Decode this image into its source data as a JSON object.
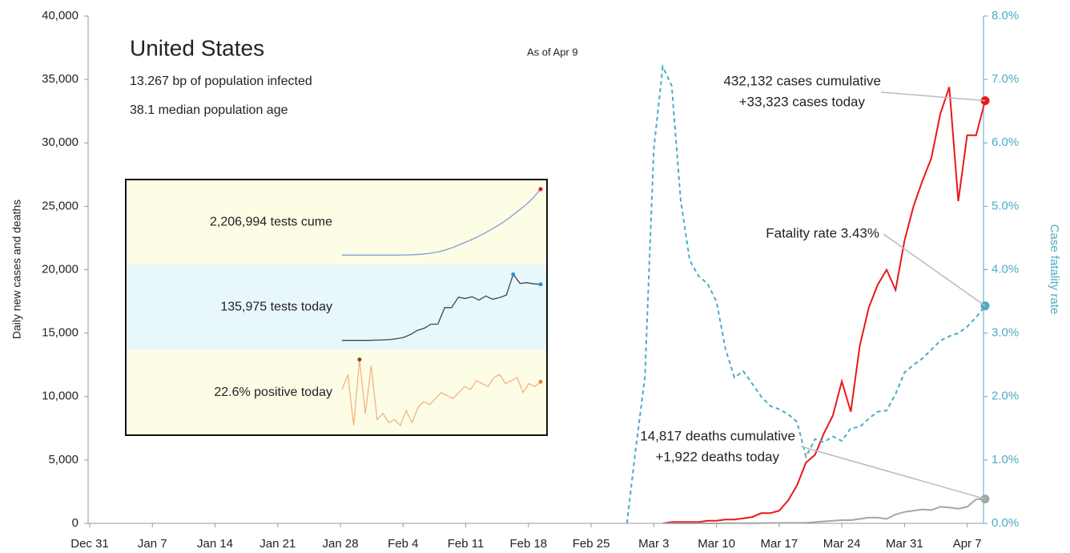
{
  "chart_data": {
    "type": "line",
    "title": "United States",
    "subtitle": [
      "13.267 bp of population infected",
      "38.1 median population age"
    ],
    "date_note": "As of Apr 9",
    "ylabel": "Daily new cases and deaths",
    "y2label": "Case fatality rate",
    "ylim": [
      0,
      40000
    ],
    "yticks": [
      0,
      {
        "value": 5000,
        "label": "5,000"
      },
      {
        "value": 10000,
        "label": "10,000"
      },
      {
        "value": 15000,
        "label": "15,000"
      },
      {
        "value": 20000,
        "label": "20,000"
      },
      {
        "value": 25000,
        "label": "25,000"
      },
      {
        "value": 30000,
        "label": "30,000"
      },
      {
        "value": 35000,
        "label": "35,000"
      },
      {
        "value": 40000,
        "label": "40,000"
      }
    ],
    "y2lim": [
      0,
      8
    ],
    "y2ticks": [
      {
        "value": 0,
        "label": "0.0%"
      },
      {
        "value": 1,
        "label": "1.0%"
      },
      {
        "value": 2,
        "label": "2.0%"
      },
      {
        "value": 3,
        "label": "3.0%"
      },
      {
        "value": 4,
        "label": "4.0%"
      },
      {
        "value": 5,
        "label": "5.0%"
      },
      {
        "value": 6,
        "label": "6.0%"
      },
      {
        "value": 7,
        "label": "7.0%"
      },
      {
        "value": 8,
        "label": "8.0%"
      }
    ],
    "y2color": "#4bacc6",
    "categories": [
      "Dec 31",
      null,
      null,
      null,
      null,
      null,
      null,
      "Jan 7",
      null,
      null,
      null,
      null,
      null,
      null,
      "Jan 14",
      null,
      null,
      null,
      null,
      null,
      null,
      "Jan 21",
      null,
      null,
      null,
      null,
      null,
      null,
      "Jan 28",
      null,
      null,
      null,
      null,
      null,
      null,
      "Feb 4",
      null,
      null,
      null,
      null,
      null,
      null,
      "Feb 11",
      null,
      null,
      null,
      null,
      null,
      null,
      "Feb 18",
      null,
      null,
      null,
      null,
      null,
      null,
      "Feb 25",
      null,
      null,
      null,
      null,
      null,
      null,
      "Mar 3",
      null,
      null,
      null,
      null,
      null,
      null,
      "Mar 10",
      null,
      null,
      null,
      null,
      null,
      null,
      "Mar 17",
      null,
      null,
      null,
      null,
      null,
      null,
      "Mar 24",
      null,
      null,
      null,
      null,
      null,
      null,
      "Mar 31",
      null,
      null,
      null,
      null,
      null,
      null,
      "Apr 7",
      null,
      null
    ],
    "series": [
      {
        "color": "#e8191c",
        "dashed": false,
        "axis": "y",
        "end_marker": true,
        "values": [
          null,
          null,
          null,
          null,
          null,
          null,
          null,
          null,
          null,
          null,
          null,
          null,
          null,
          null,
          null,
          null,
          null,
          null,
          null,
          null,
          null,
          null,
          null,
          null,
          null,
          null,
          null,
          null,
          null,
          null,
          null,
          null,
          null,
          null,
          null,
          null,
          null,
          null,
          null,
          null,
          null,
          null,
          null,
          null,
          null,
          null,
          null,
          null,
          null,
          null,
          null,
          null,
          null,
          null,
          null,
          null,
          null,
          null,
          null,
          null,
          null,
          null,
          null,
          null,
          0,
          100,
          100,
          100,
          100,
          200,
          200,
          300,
          300,
          400,
          500,
          800,
          800,
          1000,
          1800,
          3000,
          4800,
          5400,
          7100,
          8500,
          11200,
          8800,
          14000,
          17000,
          18800,
          20000,
          18400,
          22300,
          25000,
          27000,
          28800,
          32300,
          34400,
          25400,
          30600,
          30600,
          33323
        ]
      },
      {
        "color": "#a6a6a6",
        "dashed": false,
        "axis": "y",
        "end_marker": true,
        "values": [
          null,
          null,
          null,
          null,
          null,
          null,
          null,
          null,
          null,
          null,
          null,
          null,
          null,
          null,
          null,
          null,
          null,
          null,
          null,
          null,
          null,
          null,
          null,
          null,
          null,
          null,
          null,
          null,
          null,
          null,
          null,
          null,
          null,
          null,
          null,
          null,
          null,
          null,
          null,
          null,
          null,
          null,
          null,
          null,
          null,
          null,
          null,
          null,
          null,
          null,
          null,
          null,
          null,
          null,
          null,
          null,
          null,
          null,
          null,
          null,
          null,
          null,
          null,
          null,
          0,
          0,
          0,
          0,
          0,
          0,
          0,
          10,
          10,
          10,
          20,
          20,
          30,
          30,
          40,
          40,
          50,
          100,
          150,
          200,
          250,
          250,
          350,
          450,
          450,
          350,
          700,
          900,
          1000,
          1100,
          1050,
          1300,
          1250,
          1150,
          1300,
          1900,
          1922
        ]
      },
      {
        "color": "#4bacc6",
        "dashed": true,
        "axis": "y2",
        "end_marker": true,
        "values": [
          null,
          null,
          null,
          null,
          null,
          null,
          null,
          null,
          null,
          null,
          null,
          null,
          null,
          null,
          null,
          null,
          null,
          null,
          null,
          null,
          null,
          null,
          null,
          null,
          null,
          null,
          null,
          null,
          null,
          null,
          null,
          null,
          null,
          null,
          null,
          null,
          null,
          null,
          null,
          null,
          null,
          null,
          null,
          null,
          null,
          null,
          null,
          null,
          null,
          null,
          null,
          null,
          null,
          null,
          null,
          null,
          null,
          null,
          null,
          null,
          0,
          1.2,
          2.3,
          5.9,
          7.2,
          6.9,
          5.1,
          4.15,
          3.9,
          3.78,
          3.5,
          2.75,
          2.3,
          2.4,
          2.2,
          2.0,
          1.85,
          1.8,
          1.72,
          1.6,
          1.05,
          1.33,
          1.28,
          1.37,
          1.3,
          1.5,
          1.52,
          1.65,
          1.76,
          1.78,
          2.04,
          2.38,
          2.5,
          2.6,
          2.74,
          2.88,
          2.95,
          3.0,
          3.1,
          3.25,
          3.43
        ]
      }
    ],
    "callouts": [
      {
        "lines": [
          "432,132 cases cumulative",
          "+33,323 cases today"
        ],
        "series": 0
      },
      {
        "lines": [
          "Fatality rate 3.43%"
        ],
        "series": 2
      },
      {
        "lines": [
          "14,817 deaths cumulative",
          "+1,922 deaths today"
        ],
        "series": 1
      }
    ],
    "inset": [
      {
        "label": "2,206,994 tests cume",
        "background": "#fdfde6",
        "color": "#7f9fcf",
        "max_color": "#e8191c",
        "end_color": "#e8191c",
        "values": [
          0,
          0,
          0,
          0,
          0,
          0,
          0,
          0,
          5000,
          15000,
          30000,
          60000,
          100000,
          170000,
          260000,
          370000,
          480000,
          600000,
          740000,
          890000,
          1050000,
          1230000,
          1440000,
          1650000,
          1900000,
          2206994
        ]
      },
      {
        "label": "135,975 tests today",
        "background": "#e8f7fc",
        "color": "#3a4656",
        "max_color": "#2a8fd0",
        "end_color": "#2a8fd0",
        "values": [
          1000,
          1000,
          1000,
          1000,
          1000,
          1500,
          2000,
          3000,
          5000,
          8000,
          15000,
          25000,
          30000,
          40000,
          40000,
          80000,
          80000,
          105000,
          102000,
          106000,
          98000,
          108000,
          100000,
          104000,
          110000,
          160000,
          138000,
          140000,
          137000,
          135975
        ]
      },
      {
        "label": "22.6% positive today",
        "background": "#fdfde6",
        "color": "#f4b183",
        "max_color": "#8b4513",
        "end_color": "#ed7d31",
        "values": [
          20,
          25,
          8,
          30,
          12,
          28,
          10,
          12,
          9,
          10,
          8,
          13,
          9,
          14,
          16,
          15,
          17,
          19,
          18,
          17,
          19,
          21,
          20,
          23,
          22,
          21,
          24,
          25,
          22,
          23,
          24,
          19,
          22,
          21,
          22.6
        ]
      }
    ]
  }
}
